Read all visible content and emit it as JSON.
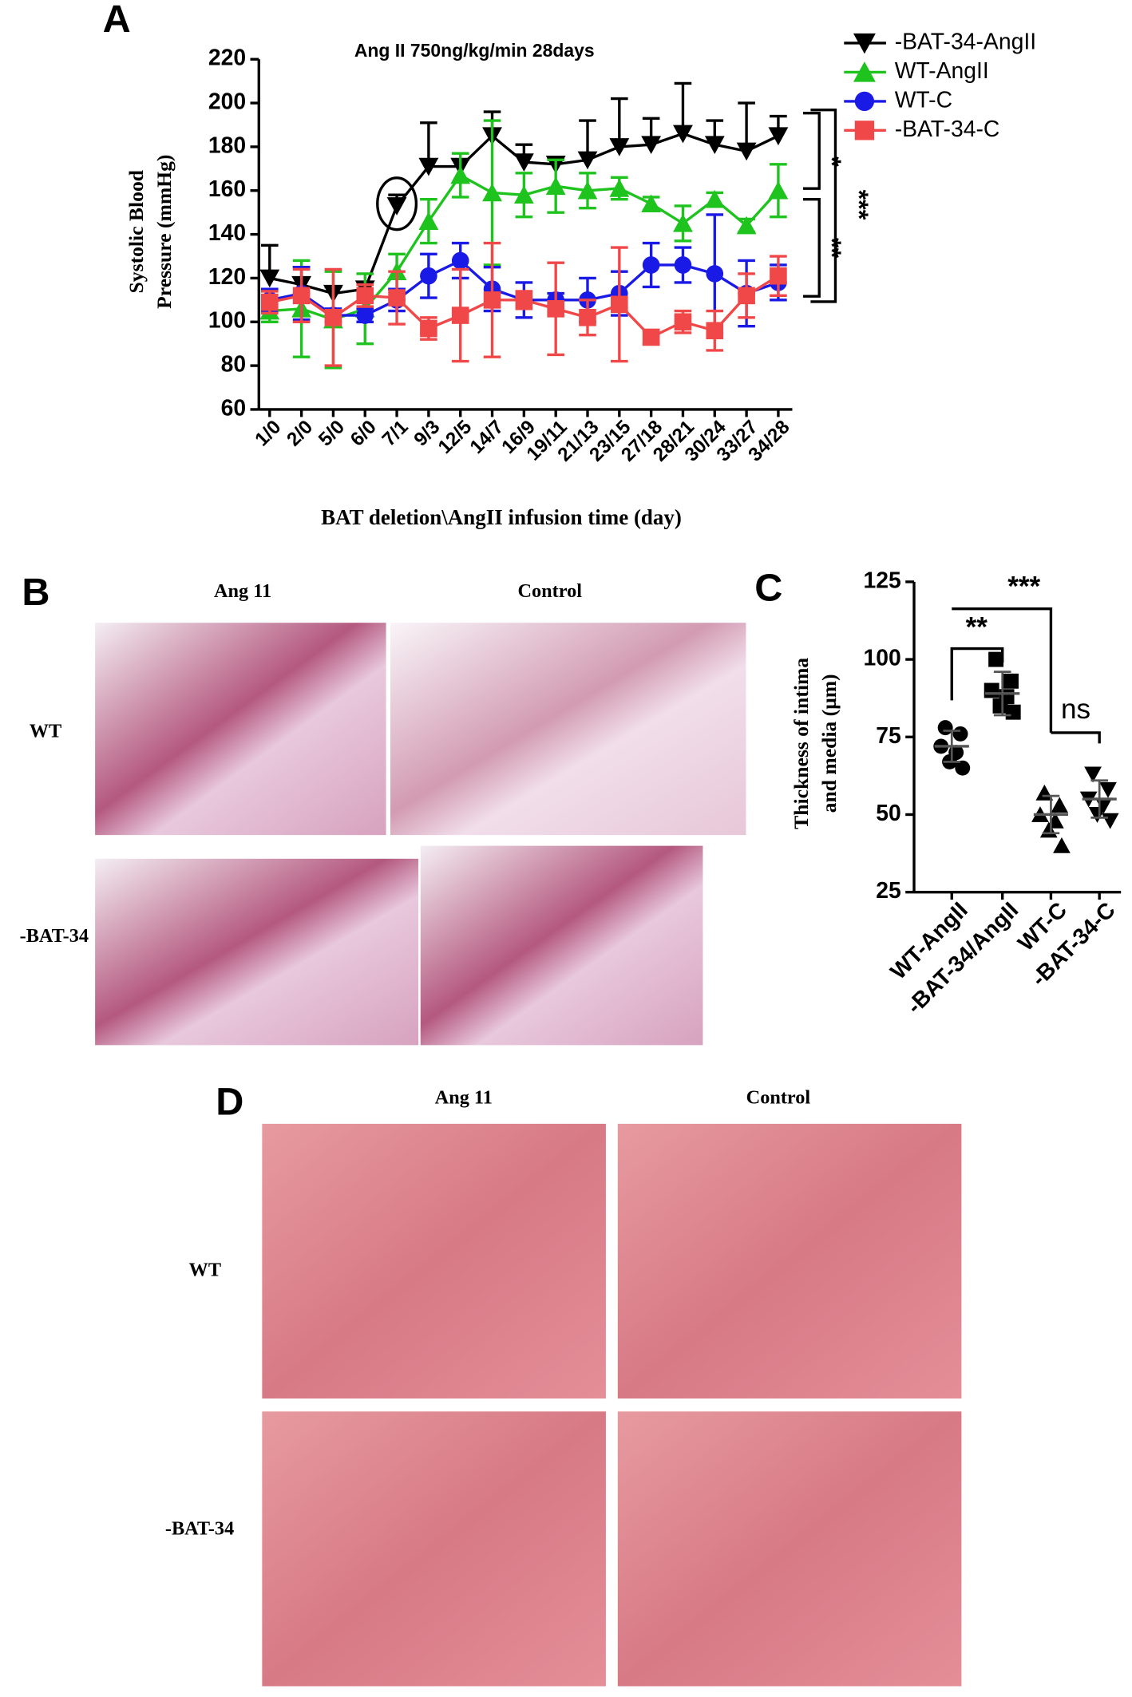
{
  "chart_data": [
    {
      "type": "line",
      "panel": "A",
      "title": "Ang II 750ng/kg/min 28days",
      "y_label": [
        "Systolic Blood",
        "Pressure (mmHg)"
      ],
      "x_label": "BAT deletion\\AngII infusion time (day)",
      "categories": [
        "1/0",
        "2/0",
        "5/0",
        "6/0",
        "7/1",
        "9/3",
        "12/5",
        "14/7",
        "16/9",
        "19/11",
        "21/13",
        "23/15",
        "27/18",
        "28/21",
        "30/24",
        "33/27",
        "34/28"
      ],
      "ylim": [
        60,
        220
      ],
      "yticks": [
        60,
        80,
        100,
        120,
        140,
        160,
        180,
        200,
        220
      ],
      "series": [
        {
          "name": "-BAT-34-AngII",
          "color": "#000000",
          "marker": "triangle-down",
          "error_bars": "upper",
          "values": [
            120,
            117,
            113,
            115,
            153,
            171,
            171,
            185,
            173,
            172,
            174,
            180,
            181,
            186,
            181,
            178,
            185
          ],
          "errors": [
            15,
            8,
            3,
            3,
            5,
            20,
            3,
            11,
            8,
            3,
            18,
            22,
            12,
            23,
            11,
            22,
            9
          ]
        },
        {
          "name": "WT-AngII",
          "color": "#1ec31e",
          "marker": "triangle-up",
          "error_bars": "both",
          "values": [
            105,
            106,
            101,
            106,
            123,
            146,
            167,
            159,
            158,
            162,
            160,
            161,
            154,
            145,
            156,
            144,
            160
          ],
          "errors": [
            5,
            22,
            22,
            16,
            8,
            10,
            10,
            33,
            10,
            12,
            8,
            5,
            3,
            8,
            3,
            3,
            12
          ]
        },
        {
          "name": "WT-C",
          "color": "#1a1ae6",
          "marker": "circle",
          "error_bars": "both",
          "values": [
            110,
            113,
            103,
            103,
            110,
            121,
            128,
            115,
            110,
            110,
            110,
            113,
            126,
            126,
            122,
            113,
            118
          ],
          "errors": [
            5,
            12,
            3,
            3,
            5,
            10,
            8,
            10,
            8,
            3,
            10,
            10,
            10,
            8,
            27,
            15,
            8
          ]
        },
        {
          "name": "-BAT-34-C",
          "color": "#f04848",
          "marker": "square",
          "error_bars": "both",
          "values": [
            109,
            112,
            102,
            112,
            111,
            97,
            103,
            110,
            110,
            106,
            102,
            108,
            93,
            100,
            96,
            112,
            121
          ],
          "errors": [
            5,
            12,
            22,
            5,
            12,
            5,
            21,
            26,
            4,
            21,
            8,
            26,
            3,
            5,
            9,
            10,
            9
          ]
        }
      ],
      "annotations": [
        "*",
        "**",
        "***"
      ]
    },
    {
      "type": "dot",
      "panel": "C",
      "y_label": [
        "Thickness of  intima",
        "and media (μm)"
      ],
      "categories": [
        "WT-AngII",
        "-BAT-34/AngII",
        "WT-C",
        "-BAT-34-C"
      ],
      "markers": [
        "circle",
        "square",
        "triangle-up",
        "triangle-down"
      ],
      "color": "#000000",
      "values": [
        [
          78,
          76,
          72,
          70,
          67,
          65
        ],
        [
          100,
          93,
          90,
          88,
          85,
          83
        ],
        [
          57,
          53,
          50,
          48,
          45,
          40
        ],
        [
          63,
          58,
          55,
          53,
          50,
          48
        ]
      ],
      "means": [
        72,
        89,
        50,
        55
      ],
      "sd": [
        5,
        7,
        6,
        6
      ],
      "ylim": [
        25,
        125
      ],
      "yticks": [
        25,
        50,
        75,
        100,
        125
      ],
      "annotations": [
        "**",
        "***",
        "ns"
      ]
    }
  ],
  "figure": {
    "panel_labels": [
      "A",
      "B",
      "C",
      "D"
    ],
    "B": {
      "columns": [
        "Ang 11",
        "Control"
      ],
      "rows": [
        "WT",
        "-BAT-34"
      ]
    },
    "D": {
      "columns": [
        "Ang 11",
        "Control"
      ],
      "rows": [
        "WT",
        "-BAT-34"
      ]
    }
  }
}
